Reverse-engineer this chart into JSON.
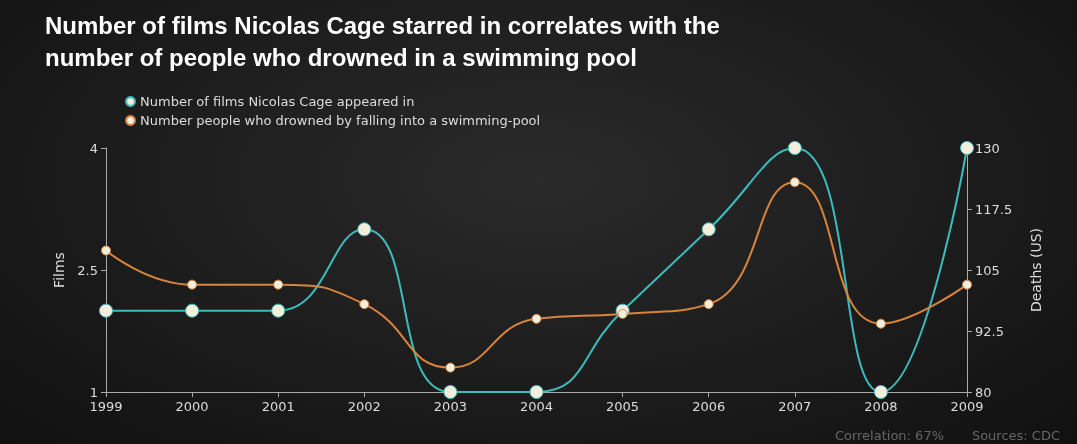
{
  "chart_data": {
    "type": "line",
    "title": "Number of films Nicolas Cage starred in correlates with the\nnumber of people who drowned in a swimming pool",
    "x": [
      1999,
      2000,
      2001,
      2002,
      2003,
      2004,
      2005,
      2006,
      2007,
      2008,
      2009
    ],
    "series": [
      {
        "name": "Number of films Nicolas Cage appeared in",
        "color": "#3cbcbc",
        "values": [
          2,
          2,
          2,
          3,
          1,
          1,
          2,
          3,
          4,
          1,
          4
        ]
      },
      {
        "name": "Number people who drowned by falling into a swimming-pool",
        "color": "#d9843c",
        "axis": "y2",
        "values": [
          109,
          102,
          102,
          98,
          85,
          95,
          96,
          98,
          123,
          94,
          102
        ]
      }
    ],
    "xlim": [
      1999,
      2009
    ],
    "xticks": [
      1999,
      2000,
      2001,
      2002,
      2003,
      2004,
      2005,
      2006,
      2007,
      2008,
      2009
    ],
    "ylim": [
      1,
      4
    ],
    "yticks": [
      1,
      2.5,
      4
    ],
    "y2lim": [
      80,
      130
    ],
    "y2ticks": [
      80,
      92.5,
      105,
      117.5,
      130
    ],
    "ylabel": "Films",
    "y2label": "Deaths (US)",
    "annotations": [
      "Correlation: 67%",
      "Sources: CDC"
    ],
    "legend": "top left",
    "grid": false,
    "marker": "circle",
    "line_style": "solid"
  }
}
